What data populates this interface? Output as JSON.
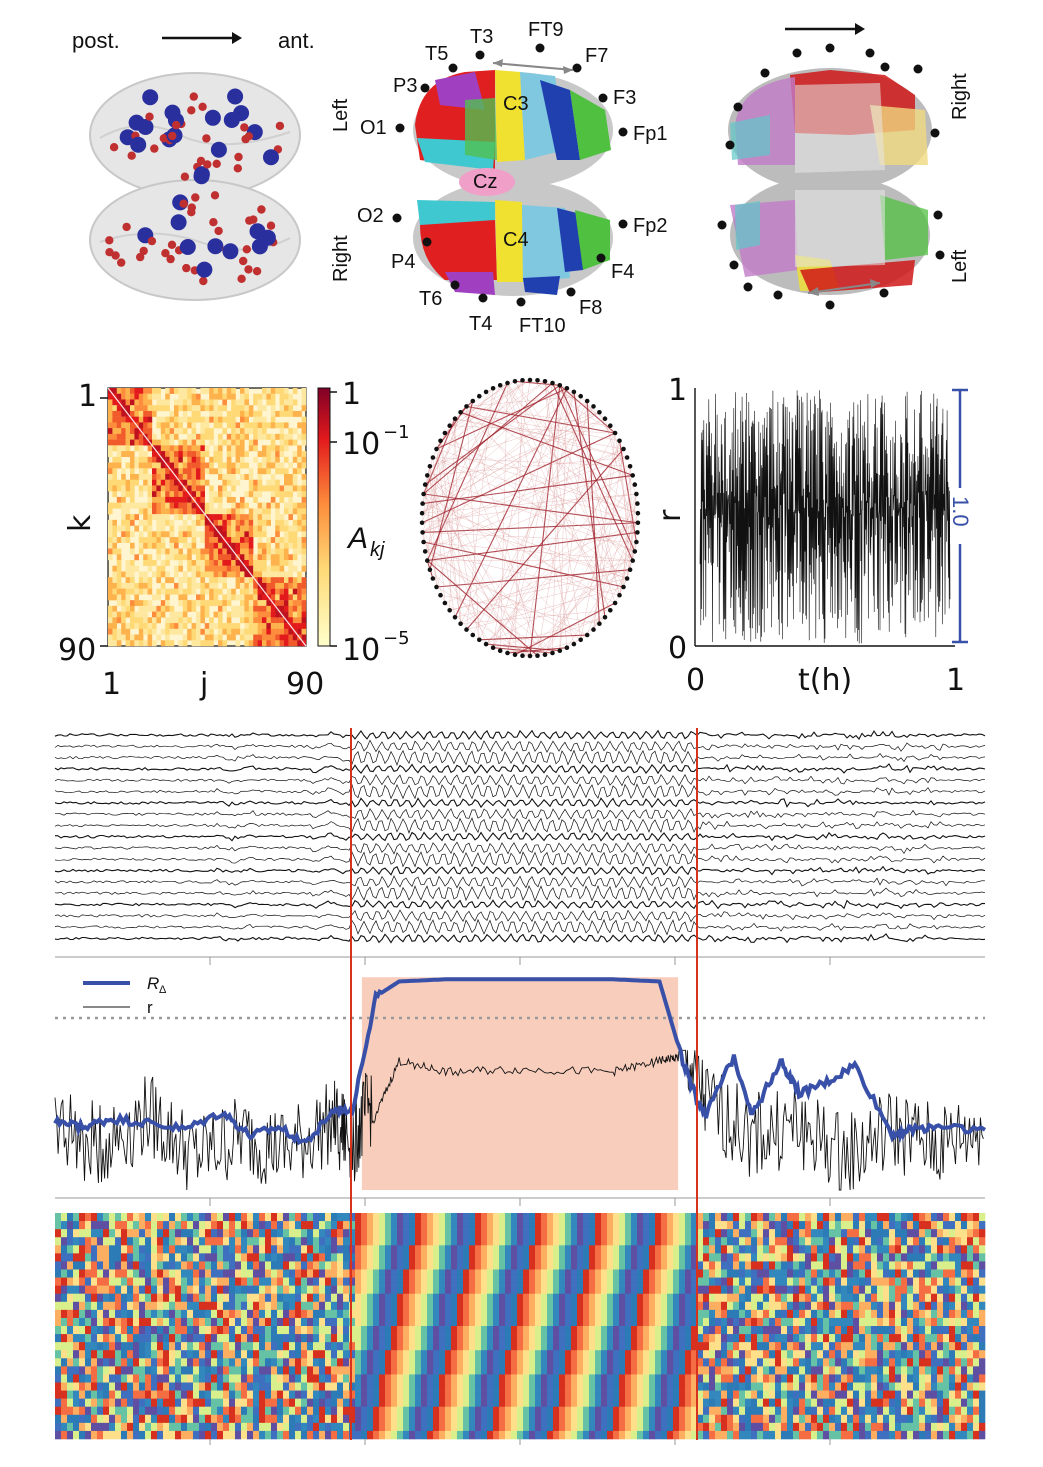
{
  "top_row": {
    "brain_left": {
      "posterior_label": "post.",
      "anterior_label": "ant."
    },
    "brain_center": {
      "side_left": "Left",
      "side_right": "Right",
      "electrodes": [
        "T3",
        "FT9",
        "T5",
        "F7",
        "P3",
        "F3",
        "C3",
        "O1",
        "Fp1",
        "Cz",
        "O2",
        "Fp2",
        "C4",
        "P4",
        "F4",
        "T6",
        "F8",
        "T4",
        "FT10"
      ]
    },
    "brain_right": {
      "side_right": "Right",
      "side_left": "Left"
    }
  },
  "middle_row": {
    "matrix": {
      "y_label": "k",
      "x_label": "j",
      "y_ticks": [
        "1",
        "90"
      ],
      "x_ticks": [
        "1",
        "90"
      ],
      "colorbar_label": "A",
      "colorbar_label_sub": "kj",
      "colorbar_ticks": [
        "1",
        "10",
        "10"
      ],
      "colorbar_exps": [
        "",
        "−1",
        "−5"
      ]
    },
    "timeseries": {
      "y_label": "r",
      "x_label": "t(h)",
      "y_ticks": [
        "1",
        "0"
      ],
      "x_ticks": [
        "0",
        "1"
      ],
      "bracket_label": "1.0"
    }
  },
  "bottom": {
    "legend": {
      "series_1": "R",
      "series_1_sub": "Δ",
      "series_2": "r"
    },
    "colors": {
      "r_delta": "#3850a8",
      "r": "#111111",
      "seizure_shade": "#f7c4b0",
      "onset_marker": "#d8321f",
      "threshold": "#9a9a9a"
    },
    "chart_data": [
      {
        "type": "line",
        "title": "",
        "series": [
          {
            "name": "R_Δ",
            "x": [
              0,
              0.03,
              0.06,
              0.1,
              0.14,
              0.18,
              0.21,
              0.24,
              0.27,
              0.3,
              0.32,
              0.345,
              0.37,
              0.42,
              0.5,
              0.6,
              0.65,
              0.675,
              0.69,
              0.7,
              0.73,
              0.75,
              0.78,
              0.8,
              0.83,
              0.86,
              0.9,
              0.92,
              0.95,
              1.0
            ],
            "values": [
              0.32,
              0.29,
              0.33,
              0.31,
              0.28,
              0.36,
              0.25,
              0.29,
              0.22,
              0.37,
              0.38,
              0.9,
              0.97,
              0.98,
              0.98,
              0.98,
              0.97,
              0.6,
              0.42,
              0.35,
              0.62,
              0.35,
              0.6,
              0.45,
              0.5,
              0.58,
              0.26,
              0.28,
              0.3,
              0.28
            ]
          },
          {
            "name": "r",
            "x": [
              0,
              0.05,
              0.1,
              0.15,
              0.2,
              0.25,
              0.3,
              0.32,
              0.34,
              0.37,
              0.42,
              0.5,
              0.6,
              0.65,
              0.67,
              0.7,
              0.75,
              0.8,
              0.85,
              0.9,
              0.95,
              1.0
            ],
            "values": [
              0.2,
              0.1,
              0.25,
              0.05,
              0.15,
              0.08,
              0.22,
              0.12,
              0.3,
              0.6,
              0.55,
              0.56,
              0.55,
              0.6,
              0.62,
              0.3,
              0.15,
              0.2,
              0.05,
              0.18,
              0.1,
              0.2
            ]
          }
        ],
        "seizure_interval": [
          0.33,
          0.67
        ],
        "threshold": 0.8,
        "xlim": [
          0,
          1
        ],
        "ylim": [
          0,
          1
        ]
      }
    ]
  }
}
